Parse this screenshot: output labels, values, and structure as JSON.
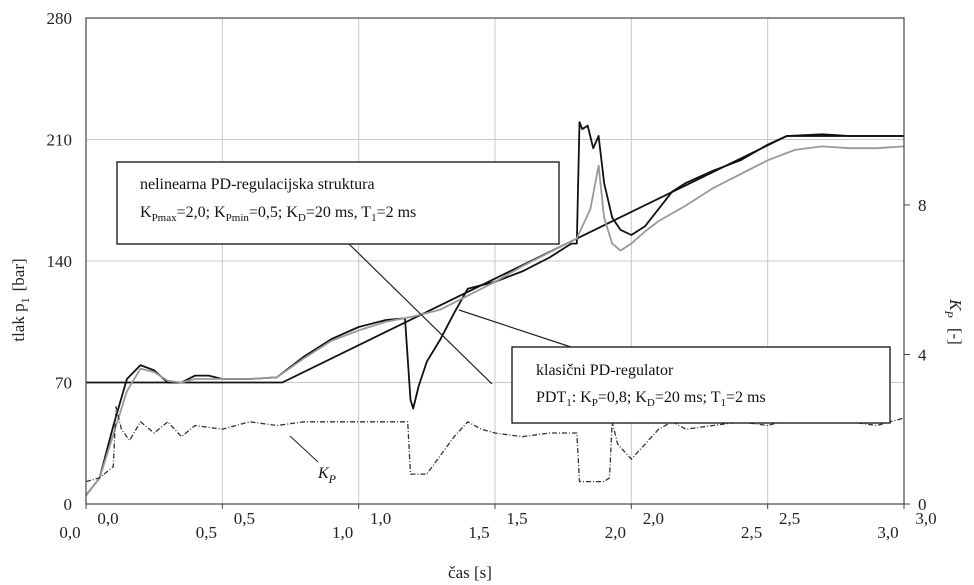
{
  "chart_data": {
    "type": "line",
    "xlabel": "čas  [s]",
    "ylabel_left": "tlak  p",
    "ylabel_left_sub": "1",
    "ylabel_left_unit": "[bar]",
    "ylabel_right": "K",
    "ylabel_right_sub": "P",
    "ylabel_right_unit": "[-]",
    "xlim": [
      0,
      3.0
    ],
    "ylim_left": [
      0,
      280
    ],
    "ylim_right": [
      0,
      13
    ],
    "grid": true,
    "x_ticks_row1": [
      "0,0",
      "0,5",
      "1,0",
      "1,5",
      "2,0",
      "2,5",
      "3,0"
    ],
    "x_ticks_row2": [
      "0,0",
      "0,5",
      "1,0",
      "1,5",
      "2,0",
      "2,5",
      "3,0"
    ],
    "y_ticks_left": [
      "0",
      "70",
      "140",
      "210",
      "280"
    ],
    "y_ticks_right": [
      "0",
      "4",
      "8"
    ],
    "y_ticks_right_values": [
      0,
      4,
      8
    ],
    "series": [
      {
        "axis": "left",
        "color": "#111111",
        "style": "solid",
        "x": [
          0,
          0.72,
          2.57,
          3.0
        ],
        "y": [
          70,
          70,
          212,
          212
        ]
      },
      {
        "axis": "left",
        "color": "#111111",
        "style": "solid",
        "x": [
          0,
          0.05,
          0.1,
          0.15,
          0.2,
          0.25,
          0.3,
          0.35,
          0.4,
          0.45,
          0.5,
          0.6,
          0.7,
          0.8,
          0.9,
          1.0,
          1.1,
          1.17,
          1.19,
          1.2,
          1.22,
          1.25,
          1.3,
          1.35,
          1.4,
          1.5,
          1.6,
          1.7,
          1.78,
          1.8,
          1.81,
          1.82,
          1.84,
          1.86,
          1.88,
          1.9,
          1.93,
          1.96,
          2.0,
          2.05,
          2.1,
          2.15,
          2.2,
          2.3,
          2.4,
          2.5,
          2.57,
          2.7,
          2.8,
          3.0
        ],
        "y": [
          5,
          15,
          45,
          72,
          80,
          77,
          70,
          70,
          74,
          74,
          72,
          72,
          73,
          85,
          95,
          102,
          106,
          107,
          60,
          55,
          68,
          82,
          95,
          110,
          124,
          128,
          134,
          142,
          150,
          150,
          220,
          216,
          218,
          205,
          212,
          185,
          165,
          158,
          155,
          160,
          170,
          180,
          185,
          192,
          198,
          207,
          212,
          213,
          212,
          212
        ]
      },
      {
        "axis": "left",
        "color": "#999999",
        "style": "solid",
        "x": [
          0,
          0.05,
          0.1,
          0.15,
          0.2,
          0.25,
          0.3,
          0.35,
          0.4,
          0.5,
          0.6,
          0.7,
          0.8,
          0.9,
          1.0,
          1.1,
          1.2,
          1.3,
          1.4,
          1.5,
          1.6,
          1.7,
          1.8,
          1.85,
          1.88,
          1.9,
          1.93,
          1.96,
          2.0,
          2.05,
          2.1,
          2.2,
          2.3,
          2.4,
          2.5,
          2.6,
          2.7,
          2.8,
          2.9,
          3.0
        ],
        "y": [
          5,
          15,
          40,
          65,
          78,
          76,
          71,
          70,
          72,
          72,
          72,
          73,
          84,
          94,
          100,
          105,
          108,
          112,
          120,
          128,
          137,
          145,
          153,
          170,
          195,
          165,
          150,
          146,
          150,
          157,
          163,
          172,
          182,
          190,
          198,
          204,
          206,
          205,
          205,
          206
        ]
      },
      {
        "axis": "right",
        "color": "#333333",
        "style": "dashed",
        "x": [
          0,
          0.05,
          0.1,
          0.11,
          0.13,
          0.16,
          0.2,
          0.25,
          0.3,
          0.35,
          0.4,
          0.5,
          0.6,
          0.7,
          0.8,
          0.9,
          1.0,
          1.1,
          1.18,
          1.19,
          1.2,
          1.25,
          1.3,
          1.35,
          1.4,
          1.45,
          1.5,
          1.6,
          1.7,
          1.8,
          1.81,
          1.82,
          1.9,
          1.92,
          1.93,
          1.95,
          2.0,
          2.05,
          2.1,
          2.15,
          2.2,
          2.3,
          2.4,
          2.5,
          2.6,
          2.7,
          2.8,
          2.9,
          3.0
        ],
        "y": [
          0.6,
          0.7,
          1.0,
          2.6,
          2.0,
          1.7,
          2.2,
          1.9,
          2.2,
          1.8,
          2.1,
          2.0,
          2.2,
          2.1,
          2.2,
          2.2,
          2.2,
          2.2,
          2.2,
          0.8,
          0.8,
          0.8,
          1.3,
          1.8,
          2.2,
          2.0,
          1.9,
          1.8,
          1.9,
          1.9,
          0.6,
          0.6,
          0.6,
          0.7,
          2.2,
          1.6,
          1.2,
          1.6,
          2.0,
          2.2,
          2.0,
          2.1,
          2.2,
          2.1,
          2.3,
          2.2,
          2.2,
          2.1,
          2.3
        ]
      }
    ],
    "annotations": [
      {
        "line1": "nelinearna PD-regulacijska struktura",
        "line2_parts": [
          "K",
          "Pmax",
          "=2,0;  K",
          "Pmin",
          "=0,5;  K",
          "D",
          "=20 ms, T",
          "1",
          "=2 ms"
        ]
      },
      {
        "line1": "klasični PD-regulator",
        "line2_parts": [
          "PDT",
          "1",
          ": K",
          "P",
          "=0,8; K",
          "D",
          "=20 ms; T",
          "1",
          "=2 ms"
        ]
      }
    ],
    "kp_label": "K",
    "kp_label_sub": "P"
  }
}
